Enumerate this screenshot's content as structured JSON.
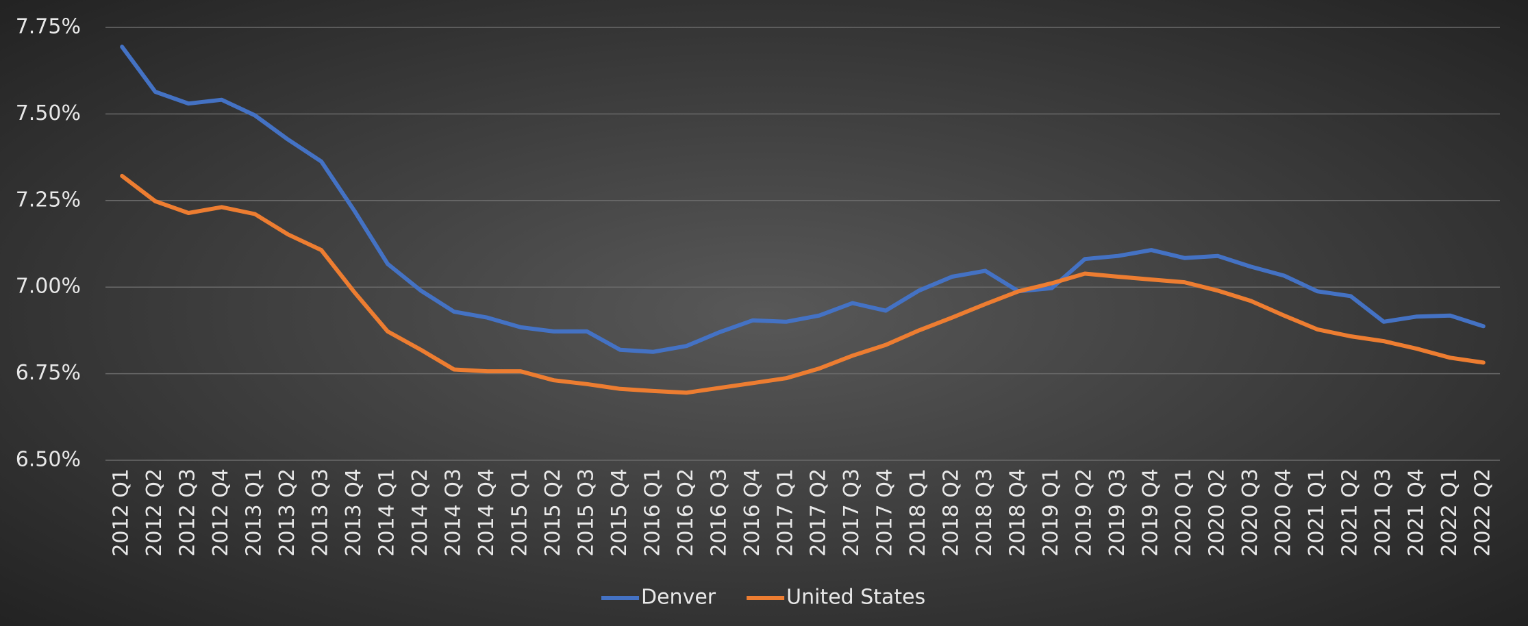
{
  "chart_data": {
    "type": "line",
    "categories": [
      "2012 Q1",
      "2012 Q2",
      "2012 Q3",
      "2012 Q4",
      "2013 Q1",
      "2013 Q2",
      "2013 Q3",
      "2013 Q4",
      "2014 Q1",
      "2014 Q2",
      "2014 Q3",
      "2014 Q4",
      "2015 Q1",
      "2015 Q2",
      "2015 Q3",
      "2015 Q4",
      "2016 Q1",
      "2016 Q2",
      "2016 Q3",
      "2016 Q4",
      "2017 Q1",
      "2017 Q2",
      "2017 Q3",
      "2017 Q4",
      "2018 Q1",
      "2018 Q2",
      "2018 Q3",
      "2018 Q4",
      "2019 Q1",
      "2019 Q2",
      "2019 Q3",
      "2019 Q4",
      "2020 Q1",
      "2020 Q2",
      "2020 Q3",
      "2020 Q4",
      "2021 Q1",
      "2021 Q2",
      "2021 Q3",
      "2021 Q4",
      "2022 Q1",
      "2022 Q2"
    ],
    "series": [
      {
        "name": "Denver",
        "color": "#4472c4",
        "values": [
          7.694,
          7.564,
          7.53,
          7.541,
          7.496,
          7.426,
          7.363,
          7.22,
          7.067,
          6.99,
          6.929,
          6.912,
          6.884,
          6.872,
          6.872,
          6.819,
          6.813,
          6.83,
          6.87,
          6.904,
          6.9,
          6.918,
          6.954,
          6.932,
          6.99,
          7.03,
          7.047,
          6.988,
          6.997,
          7.081,
          7.09,
          7.107,
          7.084,
          7.09,
          7.059,
          7.033,
          6.988,
          6.974,
          6.9,
          6.915,
          6.918,
          6.887
        ]
      },
      {
        "name": "United States",
        "color": "#ed7d31",
        "values": [
          7.321,
          7.248,
          7.214,
          7.231,
          7.211,
          7.152,
          7.107,
          6.985,
          6.872,
          6.819,
          6.762,
          6.757,
          6.757,
          6.731,
          6.72,
          6.706,
          6.7,
          6.695,
          6.709,
          6.723,
          6.737,
          6.765,
          6.802,
          6.833,
          6.875,
          6.912,
          6.951,
          6.988,
          7.011,
          7.039,
          7.03,
          7.022,
          7.014,
          6.99,
          6.96,
          6.918,
          6.878,
          6.858,
          6.844,
          6.822,
          6.796,
          6.782
        ]
      }
    ],
    "ylim": [
      6.5,
      7.75
    ],
    "yticks": [
      {
        "value": 6.5,
        "label": "6.50%"
      },
      {
        "value": 6.75,
        "label": "6.75%"
      },
      {
        "value": 7.0,
        "label": "7.00%"
      },
      {
        "value": 7.25,
        "label": "7.25%"
      },
      {
        "value": 7.5,
        "label": "7.50%"
      },
      {
        "value": 7.75,
        "label": "7.75%"
      }
    ],
    "grid": true,
    "legend": "bottom"
  }
}
